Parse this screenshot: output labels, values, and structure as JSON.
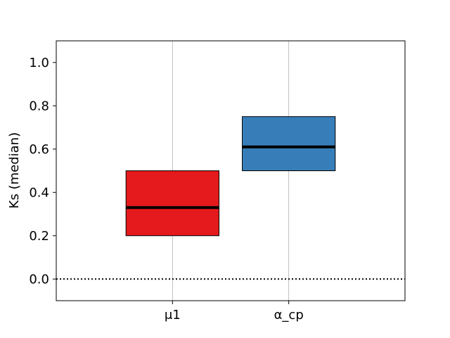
{
  "chart_data": {
    "type": "box",
    "title": "",
    "xlabel": "",
    "ylabel": "Ks (median)",
    "categories": [
      "μ1",
      "α_cp"
    ],
    "boxes": [
      {
        "category": "μ1",
        "q1": 0.2,
        "median": 0.33,
        "q3": 0.5,
        "color": "#e41a1c"
      },
      {
        "category": "α_cp",
        "q1": 0.5,
        "median": 0.61,
        "q3": 0.75,
        "color": "#377eb8"
      }
    ],
    "ylim": [
      -0.1,
      1.1
    ],
    "yticks": [
      "0.0",
      "0.2",
      "0.4",
      "0.6",
      "0.8",
      "1.0"
    ],
    "reference_line": {
      "y": 0.0,
      "style": "dotted",
      "color": "#000000"
    },
    "vertical_grid": true
  }
}
